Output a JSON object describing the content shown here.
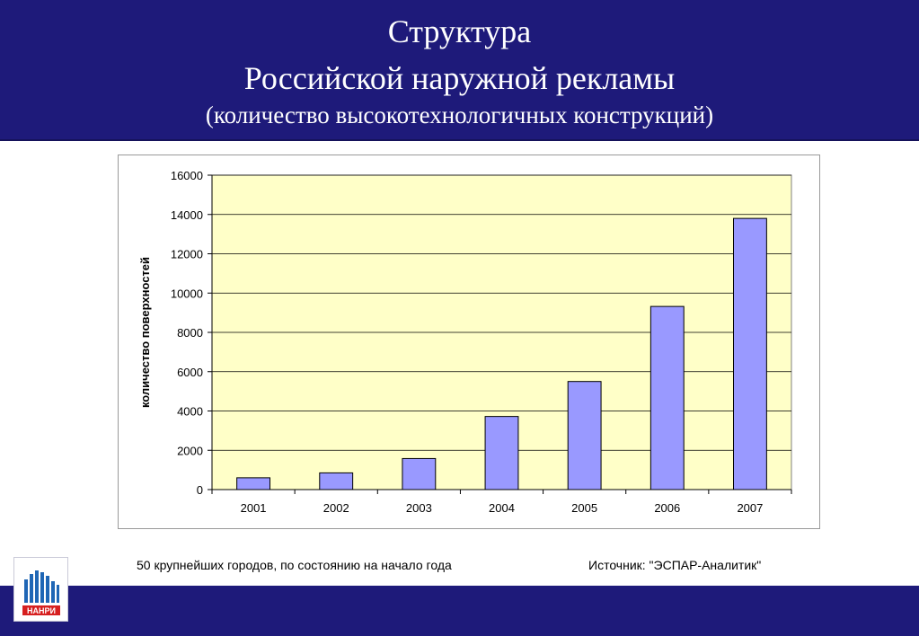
{
  "header": {
    "title_line1": "Структура",
    "title_line2": "Российской наружной рекламы",
    "subtitle": "(количество высокотехнологичных конструкций)"
  },
  "chart_data": {
    "type": "bar",
    "categories": [
      "2001",
      "2002",
      "2003",
      "2004",
      "2005",
      "2006",
      "2007"
    ],
    "values": [
      600,
      850,
      1580,
      3720,
      5500,
      9320,
      13800
    ],
    "ylabel": "количество поверхностей",
    "xlabel": "",
    "ylim": [
      0,
      16000
    ],
    "yticks": [
      "0",
      "2000",
      "4000",
      "6000",
      "8000",
      "10000",
      "12000",
      "14000",
      "16000"
    ],
    "grid": true,
    "plot_background": "#ffffc8",
    "bar_color": "#9999ff",
    "bar_edge_color": "#000000"
  },
  "footer": {
    "note_left": "50 крупнейших городов, по состоянию на начало года",
    "note_right": "Источник: \"ЭСПАР-Аналитик\"",
    "logo_text": "НАНРИ"
  },
  "colors": {
    "header_bg": "#1e1a7a",
    "footer_bg": "#1e1a7a",
    "logo_blue": "#1f66b5",
    "logo_red": "#d62020"
  }
}
